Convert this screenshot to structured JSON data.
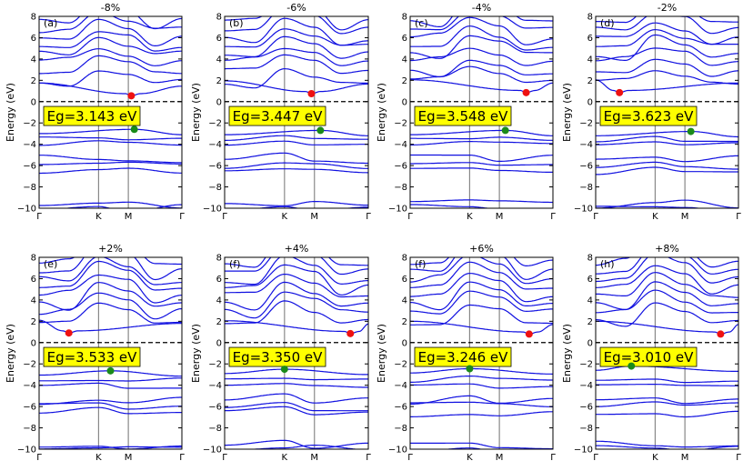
{
  "chart_data": {
    "type": "line",
    "figure_description": "Band structures under biaxial strain",
    "ylabel": "Energy (eV)",
    "ylim": [
      -10,
      8
    ],
    "yticks": [
      8,
      6,
      4,
      2,
      0,
      -2,
      -4,
      -6,
      -8,
      -10
    ],
    "kpath_labels": [
      "Γ",
      "K",
      "M",
      "Γ"
    ],
    "kpath_positions": [
      0,
      1.0,
      1.5,
      2.4
    ],
    "fermi_level": 0,
    "colors": {
      "bands": "#1010e0",
      "vbm_marker": "#1a8a1a",
      "cbm_marker": "#ee1111",
      "eg_box": "#ffff00",
      "vertical_lines": "#888888"
    },
    "panels": [
      {
        "label": "(a)",
        "strain": "-8%",
        "eg_text": "Eg=3.143 eV",
        "gap_eV": 3.143,
        "vbm": {
          "k": 1.6,
          "E": -2.6
        },
        "cbm": {
          "k": 1.55,
          "E": 0.55
        }
      },
      {
        "label": "(b)",
        "strain": "-6%",
        "eg_text": "Eg=3.447 eV",
        "gap_eV": 3.447,
        "vbm": {
          "k": 1.6,
          "E": -2.7
        },
        "cbm": {
          "k": 1.45,
          "E": 0.75
        }
      },
      {
        "label": "(c)",
        "strain": "-4%",
        "eg_text": "Eg=3.548 eV",
        "gap_eV": 3.548,
        "vbm": {
          "k": 1.6,
          "E": -2.7
        },
        "cbm": {
          "k": 1.95,
          "E": 0.85
        }
      },
      {
        "label": "(d)",
        "strain": "-2%",
        "eg_text": "Eg=3.623 eV",
        "gap_eV": 3.623,
        "vbm": {
          "k": 1.6,
          "E": -2.8
        },
        "cbm": {
          "k": 0.4,
          "E": 0.85
        }
      },
      {
        "label": "(e)",
        "strain": "+2%",
        "eg_text": "Eg=3.533 eV",
        "gap_eV": 3.533,
        "vbm": {
          "k": 1.2,
          "E": -2.65
        },
        "cbm": {
          "k": 0.5,
          "E": 0.9
        }
      },
      {
        "label": "(f)",
        "strain": "+4%",
        "eg_text": "Eg=3.350 eV",
        "gap_eV": 3.35,
        "vbm": {
          "k": 1.0,
          "E": -2.5
        },
        "cbm": {
          "k": 2.1,
          "E": 0.85
        }
      },
      {
        "label": "(f)",
        "strain": "+6%",
        "eg_text": "Eg=3.246 eV",
        "gap_eV": 3.246,
        "vbm": {
          "k": 1.0,
          "E": -2.45
        },
        "cbm": {
          "k": 2.0,
          "E": 0.8
        }
      },
      {
        "label": "(h)",
        "strain": "+8%",
        "eg_text": "Eg=3.010 eV",
        "gap_eV": 3.01,
        "vbm": {
          "k": 0.6,
          "E": -2.2
        },
        "cbm": {
          "k": 2.1,
          "E": 0.8
        }
      }
    ]
  }
}
